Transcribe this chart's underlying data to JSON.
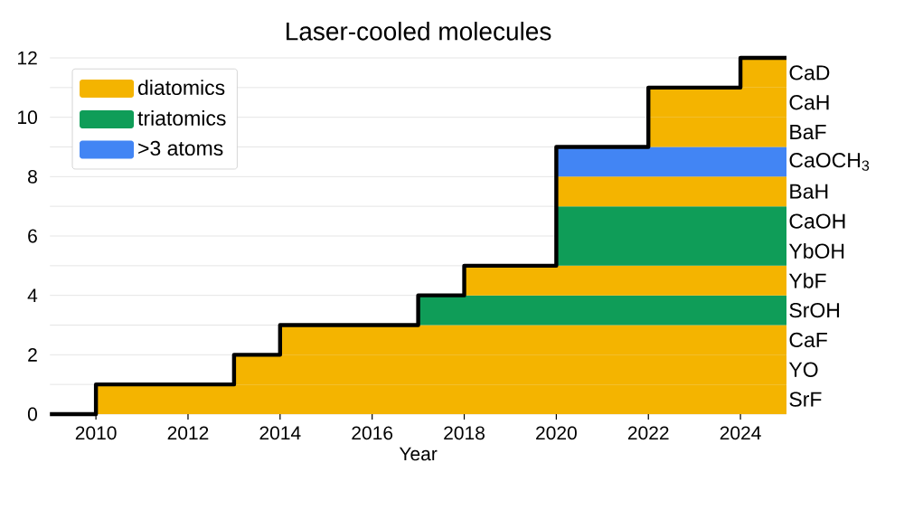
{
  "chart_data": {
    "type": "area",
    "stacked": true,
    "title": "Laser-cooled molecules",
    "xlabel": "Year",
    "xlim": [
      2009,
      2025
    ],
    "xticks": [
      2010,
      2012,
      2014,
      2016,
      2018,
      2020,
      2022,
      2024
    ],
    "ylim": [
      0,
      12
    ],
    "yticks": [
      0,
      {
        "value": 1,
        "label": null
      },
      2,
      {
        "value": 3,
        "label": null
      },
      4,
      {
        "value": 5,
        "label": null
      },
      6,
      {
        "value": 7,
        "label": null
      },
      8,
      {
        "value": 9,
        "label": null
      },
      10,
      {
        "value": 11,
        "label": null
      },
      12
    ],
    "grid": "y",
    "legend": "top left",
    "series": [
      {
        "name": "diatomics",
        "color": "#f4b400",
        "x": [
          2010,
          2025
        ],
        "values": [
          1,
          1
        ]
      },
      {
        "color": "#f4b400",
        "x": [
          2013,
          2025
        ],
        "values": [
          1,
          1
        ]
      },
      {
        "color": "#f4b400",
        "x": [
          2014,
          2025
        ],
        "values": [
          1,
          1
        ]
      },
      {
        "name": "triatomics",
        "color": "#0f9d58",
        "x": [
          2017,
          2025
        ],
        "values": [
          1,
          1
        ]
      },
      {
        "color": "#f4b400",
        "x": [
          2018,
          2025
        ],
        "values": [
          1,
          1
        ]
      },
      {
        "color": "#0f9d58",
        "x": [
          2020,
          2025
        ],
        "values": [
          1,
          1
        ]
      },
      {
        "color": "#0f9d58",
        "x": [
          2020,
          2025
        ],
        "values": [
          1,
          1
        ]
      },
      {
        "color": "#f4b400",
        "x": [
          2020,
          2025
        ],
        "values": [
          1,
          1
        ]
      },
      {
        "name": ">3 atoms",
        "color": "#4285f4",
        "x": [
          2020,
          2025
        ],
        "values": [
          1,
          1
        ]
      },
      {
        "color": "#f4b400",
        "x": [
          2022,
          2025
        ],
        "values": [
          1,
          1
        ]
      },
      {
        "color": "#f4b400",
        "x": [
          2022,
          2025
        ],
        "values": [
          1,
          1
        ]
      },
      {
        "color": "#f4b400",
        "x": [
          2024,
          2025
        ],
        "values": [
          1,
          1
        ]
      },
      {
        "type": "step",
        "color": "#000000",
        "x": [
          2009,
          2010,
          2013,
          2014,
          2017,
          2018,
          2020,
          2022,
          2024,
          2025
        ],
        "values": [
          0,
          1,
          2,
          3,
          4,
          5,
          9,
          11,
          12,
          12
        ]
      }
    ],
    "annotations": [
      "SrF",
      "YO",
      "CaF",
      "SrOH",
      "YbF",
      "YbOH",
      "CaOH",
      "BaH",
      "CaOCH$_{3}$",
      "BaF",
      "CaH",
      "CaD"
    ]
  }
}
